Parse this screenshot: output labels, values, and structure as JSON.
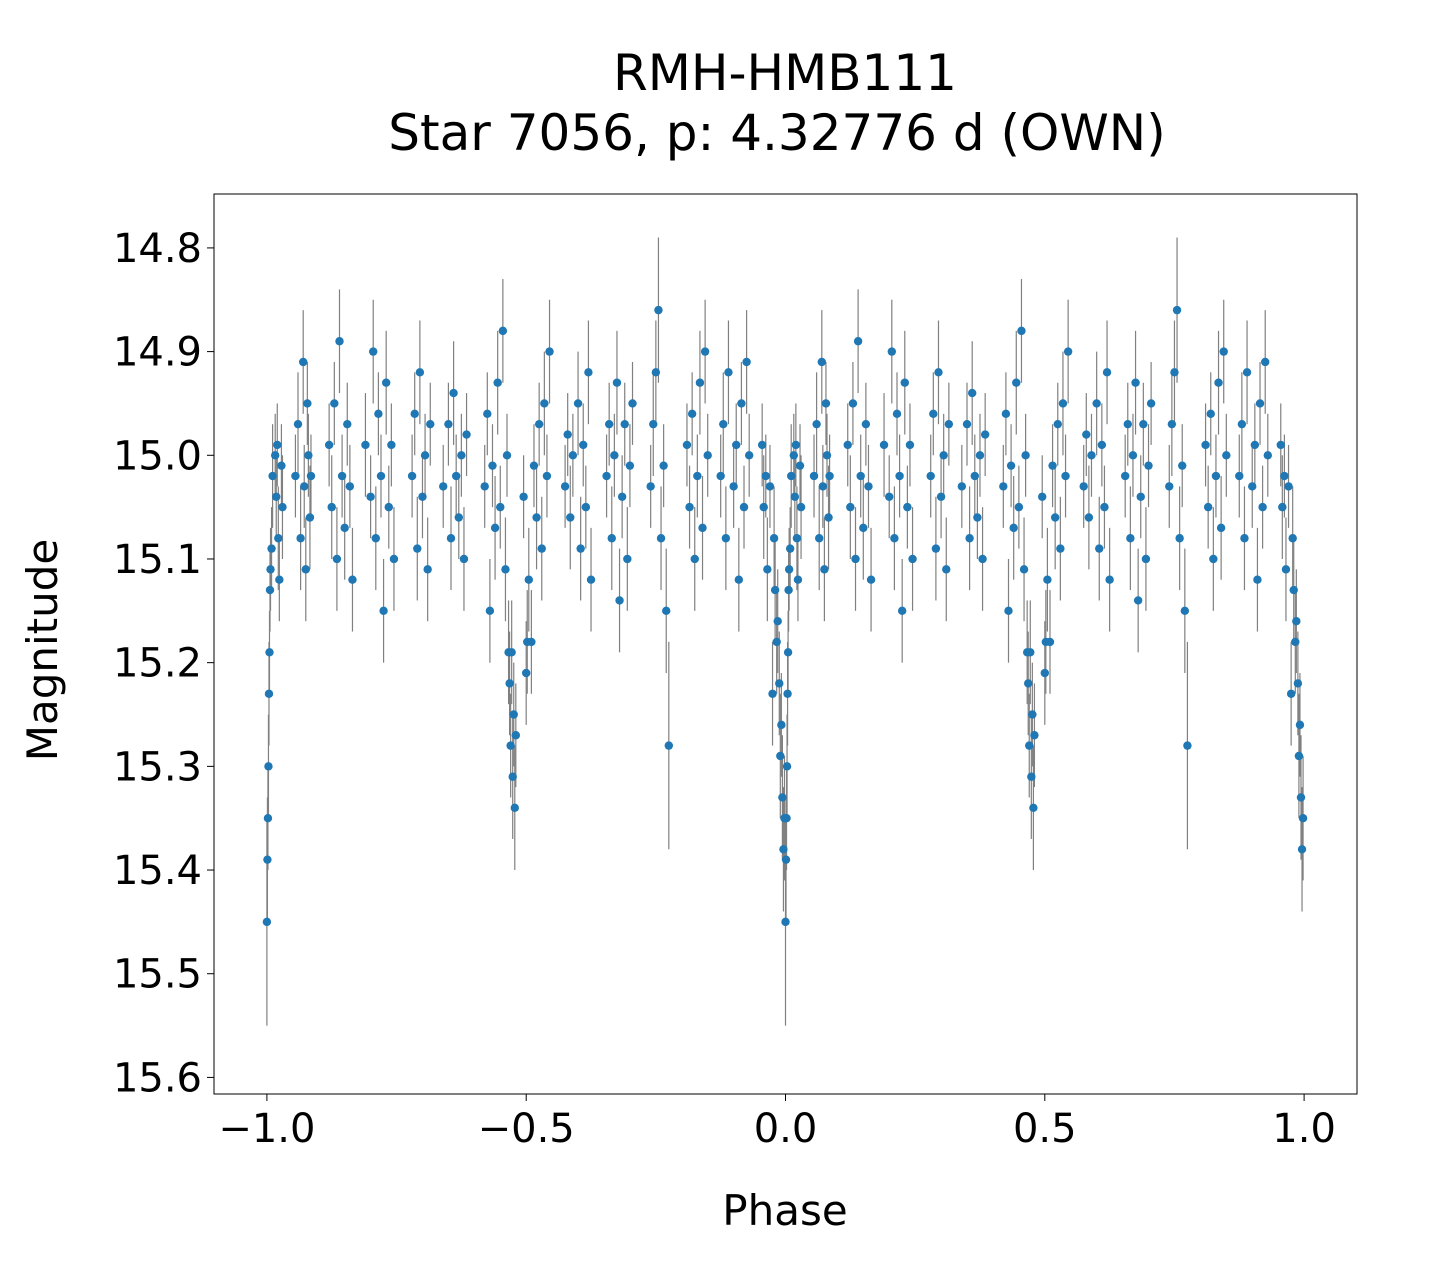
{
  "chart_data": {
    "type": "scatter",
    "title_line1": "RMH-HMB111",
    "title_line2": "Star 7056, p: 4.32776 d (OWN)",
    "xlabel": "Phase",
    "ylabel": "Magnitude",
    "xlim": [
      -1.102,
      1.102
    ],
    "ylim": [
      15.616,
      14.748
    ],
    "y_inverted": true,
    "grid": false,
    "xticks": [
      {
        "v": -1.0,
        "label": "−1.0"
      },
      {
        "v": -0.5,
        "label": "−0.5"
      },
      {
        "v": 0.0,
        "label": "0.0"
      },
      {
        "v": 0.5,
        "label": "0.5"
      },
      {
        "v": 1.0,
        "label": "1.0"
      }
    ],
    "yticks": [
      {
        "v": 14.8,
        "label": "14.8"
      },
      {
        "v": 14.9,
        "label": "14.9"
      },
      {
        "v": 15.0,
        "label": "15.0"
      },
      {
        "v": 15.1,
        "label": "15.1"
      },
      {
        "v": 15.2,
        "label": "15.2"
      },
      {
        "v": 15.3,
        "label": "15.3"
      },
      {
        "v": 15.4,
        "label": "15.4"
      },
      {
        "v": 15.5,
        "label": "15.5"
      },
      {
        "v": 15.6,
        "label": "15.6"
      }
    ],
    "point_color": "#1f77b4",
    "errorbar_color": "#808080",
    "duplicate_at_phase_minus_one": true,
    "points_phase_mag_err": [
      [
        0.003,
        15.3,
        0.05
      ],
      [
        0.001,
        15.39,
        0.06
      ],
      [
        0.0,
        15.45,
        0.1
      ],
      [
        0.002,
        15.35,
        0.05
      ],
      [
        0.004,
        15.23,
        0.05
      ],
      [
        0.005,
        15.19,
        0.04
      ],
      [
        0.006,
        15.13,
        0.04
      ],
      [
        0.007,
        15.11,
        0.04
      ],
      [
        0.009,
        15.09,
        0.04
      ],
      [
        0.011,
        15.02,
        0.05
      ],
      [
        0.016,
        15.0,
        0.04
      ],
      [
        0.018,
        15.04,
        0.04
      ],
      [
        0.02,
        14.99,
        0.04
      ],
      [
        0.022,
        15.08,
        0.05
      ],
      [
        0.024,
        15.12,
        0.04
      ],
      [
        0.028,
        15.01,
        0.04
      ],
      [
        0.03,
        15.05,
        0.05
      ],
      [
        0.055,
        15.02,
        0.04
      ],
      [
        0.06,
        14.97,
        0.05
      ],
      [
        0.065,
        15.08,
        0.05
      ],
      [
        0.07,
        14.91,
        0.05
      ],
      [
        0.072,
        15.03,
        0.04
      ],
      [
        0.075,
        15.11,
        0.05
      ],
      [
        0.078,
        14.95,
        0.04
      ],
      [
        0.08,
        15.0,
        0.04
      ],
      [
        0.083,
        15.06,
        0.05
      ],
      [
        0.085,
        15.02,
        0.04
      ],
      [
        0.12,
        14.99,
        0.04
      ],
      [
        0.125,
        15.05,
        0.05
      ],
      [
        0.13,
        14.95,
        0.04
      ],
      [
        0.135,
        15.1,
        0.05
      ],
      [
        0.14,
        14.89,
        0.05
      ],
      [
        0.145,
        15.02,
        0.04
      ],
      [
        0.15,
        15.07,
        0.05
      ],
      [
        0.155,
        14.97,
        0.04
      ],
      [
        0.16,
        15.03,
        0.04
      ],
      [
        0.165,
        15.12,
        0.05
      ],
      [
        0.19,
        14.99,
        0.05
      ],
      [
        0.2,
        15.04,
        0.04
      ],
      [
        0.205,
        14.9,
        0.05
      ],
      [
        0.21,
        15.08,
        0.05
      ],
      [
        0.215,
        14.96,
        0.04
      ],
      [
        0.22,
        15.02,
        0.04
      ],
      [
        0.225,
        15.15,
        0.05
      ],
      [
        0.23,
        14.93,
        0.05
      ],
      [
        0.235,
        15.05,
        0.04
      ],
      [
        0.24,
        14.99,
        0.04
      ],
      [
        0.245,
        15.1,
        0.05
      ],
      [
        0.28,
        15.02,
        0.04
      ],
      [
        0.285,
        14.96,
        0.04
      ],
      [
        0.29,
        15.09,
        0.05
      ],
      [
        0.295,
        14.92,
        0.05
      ],
      [
        0.3,
        15.04,
        0.04
      ],
      [
        0.305,
        15.0,
        0.04
      ],
      [
        0.31,
        15.11,
        0.05
      ],
      [
        0.315,
        14.97,
        0.04
      ],
      [
        0.34,
        15.03,
        0.04
      ],
      [
        0.35,
        14.97,
        0.04
      ],
      [
        0.355,
        15.08,
        0.05
      ],
      [
        0.36,
        14.94,
        0.05
      ],
      [
        0.365,
        15.02,
        0.04
      ],
      [
        0.37,
        15.06,
        0.04
      ],
      [
        0.375,
        15.0,
        0.04
      ],
      [
        0.38,
        15.1,
        0.05
      ],
      [
        0.385,
        14.98,
        0.04
      ],
      [
        0.42,
        15.03,
        0.04
      ],
      [
        0.425,
        14.96,
        0.04
      ],
      [
        0.43,
        15.15,
        0.05
      ],
      [
        0.435,
        15.01,
        0.04
      ],
      [
        0.44,
        15.07,
        0.05
      ],
      [
        0.445,
        14.93,
        0.05
      ],
      [
        0.45,
        15.05,
        0.04
      ],
      [
        0.455,
        14.88,
        0.05
      ],
      [
        0.46,
        15.11,
        0.05
      ],
      [
        0.463,
        15.0,
        0.04
      ],
      [
        0.466,
        15.19,
        0.05
      ],
      [
        0.468,
        15.22,
        0.05
      ],
      [
        0.47,
        15.28,
        0.05
      ],
      [
        0.472,
        15.19,
        0.05
      ],
      [
        0.474,
        15.31,
        0.06
      ],
      [
        0.476,
        15.25,
        0.05
      ],
      [
        0.478,
        15.34,
        0.06
      ],
      [
        0.48,
        15.27,
        0.05
      ],
      [
        0.495,
        15.04,
        0.04
      ],
      [
        0.5,
        15.21,
        0.05
      ],
      [
        0.502,
        15.18,
        0.05
      ],
      [
        0.505,
        15.12,
        0.05
      ],
      [
        0.51,
        15.18,
        0.05
      ],
      [
        0.515,
        15.01,
        0.04
      ],
      [
        0.52,
        15.06,
        0.05
      ],
      [
        0.525,
        14.97,
        0.04
      ],
      [
        0.53,
        15.09,
        0.05
      ],
      [
        0.535,
        14.95,
        0.05
      ],
      [
        0.54,
        15.02,
        0.04
      ],
      [
        0.545,
        14.9,
        0.05
      ],
      [
        0.575,
        15.03,
        0.04
      ],
      [
        0.58,
        14.98,
        0.04
      ],
      [
        0.585,
        15.06,
        0.05
      ],
      [
        0.59,
        15.0,
        0.04
      ],
      [
        0.6,
        14.95,
        0.05
      ],
      [
        0.605,
        15.09,
        0.05
      ],
      [
        0.61,
        14.99,
        0.04
      ],
      [
        0.615,
        15.05,
        0.04
      ],
      [
        0.62,
        14.92,
        0.05
      ],
      [
        0.625,
        15.12,
        0.05
      ],
      [
        0.655,
        15.02,
        0.04
      ],
      [
        0.66,
        14.97,
        0.04
      ],
      [
        0.665,
        15.08,
        0.05
      ],
      [
        0.67,
        15.0,
        0.04
      ],
      [
        0.675,
        14.93,
        0.05
      ],
      [
        0.68,
        15.14,
        0.05
      ],
      [
        0.685,
        15.04,
        0.04
      ],
      [
        0.69,
        14.97,
        0.04
      ],
      [
        0.695,
        15.1,
        0.05
      ],
      [
        0.7,
        15.01,
        0.04
      ],
      [
        0.705,
        14.95,
        0.04
      ],
      [
        0.74,
        15.03,
        0.04
      ],
      [
        0.745,
        14.97,
        0.05
      ],
      [
        0.75,
        14.92,
        0.05
      ],
      [
        0.755,
        14.86,
        0.07
      ],
      [
        0.76,
        15.08,
        0.05
      ],
      [
        0.765,
        15.01,
        0.04
      ],
      [
        0.77,
        15.15,
        0.06
      ],
      [
        0.775,
        15.28,
        0.1
      ],
      [
        0.81,
        14.99,
        0.04
      ],
      [
        0.815,
        15.05,
        0.04
      ],
      [
        0.82,
        14.96,
        0.04
      ],
      [
        0.825,
        15.1,
        0.05
      ],
      [
        0.83,
        15.02,
        0.04
      ],
      [
        0.835,
        14.93,
        0.05
      ],
      [
        0.84,
        15.07,
        0.05
      ],
      [
        0.845,
        14.9,
        0.05
      ],
      [
        0.85,
        15.0,
        0.04
      ],
      [
        0.875,
        15.02,
        0.04
      ],
      [
        0.88,
        14.97,
        0.05
      ],
      [
        0.885,
        15.08,
        0.05
      ],
      [
        0.89,
        14.92,
        0.05
      ],
      [
        0.9,
        15.03,
        0.04
      ],
      [
        0.905,
        14.99,
        0.04
      ],
      [
        0.91,
        15.12,
        0.05
      ],
      [
        0.915,
        14.95,
        0.04
      ],
      [
        0.92,
        15.05,
        0.04
      ],
      [
        0.925,
        14.91,
        0.05
      ],
      [
        0.93,
        15.0,
        0.04
      ],
      [
        0.955,
        14.99,
        0.04
      ],
      [
        0.958,
        15.05,
        0.05
      ],
      [
        0.962,
        15.02,
        0.04
      ],
      [
        0.965,
        15.11,
        0.05
      ],
      [
        0.97,
        15.03,
        0.04
      ],
      [
        0.975,
        15.23,
        0.05
      ],
      [
        0.978,
        15.08,
        0.05
      ],
      [
        0.98,
        15.13,
        0.05
      ],
      [
        0.983,
        15.18,
        0.05
      ],
      [
        0.985,
        15.16,
        0.05
      ],
      [
        0.988,
        15.22,
        0.05
      ],
      [
        0.99,
        15.29,
        0.06
      ],
      [
        0.992,
        15.26,
        0.05
      ],
      [
        0.994,
        15.33,
        0.06
      ],
      [
        0.996,
        15.38,
        0.06
      ],
      [
        0.998,
        15.35,
        0.06
      ]
    ]
  }
}
